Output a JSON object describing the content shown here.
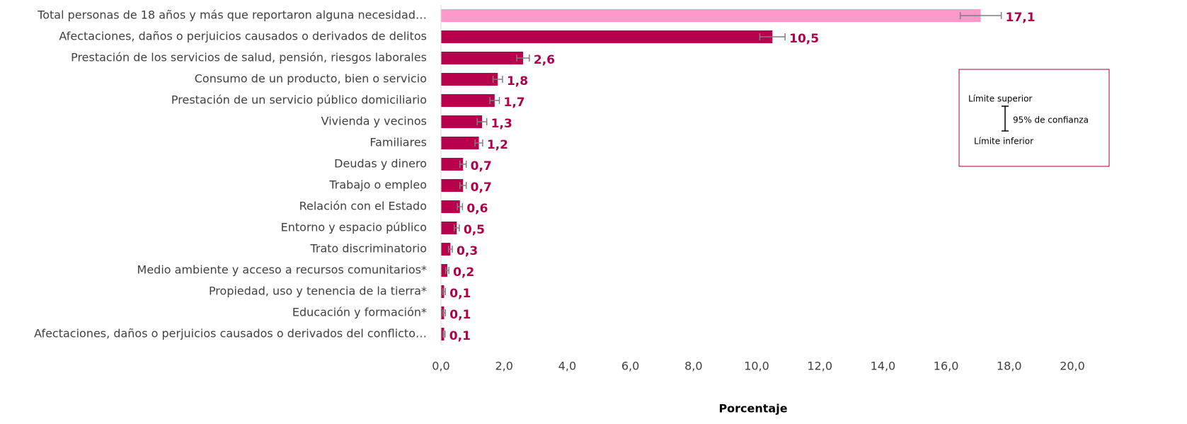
{
  "chart_data": {
    "type": "hbar_error",
    "categories": [
      "Total personas de 18 años y más que reportaron alguna necesidad…",
      "Afectaciones, daños o perjuicios causados o derivados de delitos",
      "Prestación de los servicios de salud, pensión, riesgos laborales",
      "Consumo de un producto, bien o servicio",
      "Prestación de un servicio público domiciliario",
      "Vivienda y vecinos",
      "Familiares",
      "Deudas y dinero",
      "Trabajo o empleo",
      "Relación con el Estado",
      "Entorno y espacio público",
      "Trato discriminatorio",
      "Medio ambiente y acceso a recursos comunitarios*",
      "Propiedad, uso y tenencia de la tierra*",
      "Educación y formación*",
      "Afectaciones, daños o perjuicios causados o derivados del conflicto…"
    ],
    "values": [
      17.1,
      10.5,
      2.6,
      1.8,
      1.7,
      1.3,
      1.2,
      0.7,
      0.7,
      0.6,
      0.5,
      0.3,
      0.2,
      0.1,
      0.1,
      0.1
    ],
    "value_labels": [
      "17,1",
      "10,5",
      "2,6",
      "1,8",
      "1,7",
      "1,3",
      "1,2",
      "0,7",
      "0,7",
      "0,6",
      "0,5",
      "0,3",
      "0,2",
      "0,1",
      "0,1",
      "0,1"
    ],
    "errors": [
      0.65,
      0.4,
      0.2,
      0.15,
      0.15,
      0.15,
      0.12,
      0.1,
      0.1,
      0.08,
      0.08,
      0.06,
      0.05,
      0.04,
      0.04,
      0.03
    ],
    "colors": [
      "#ff99cc",
      "#b8004d",
      "#b8004d",
      "#b8004d",
      "#b8004d",
      "#b8004d",
      "#b8004d",
      "#b8004d",
      "#b8004d",
      "#b8004d",
      "#b8004d",
      "#b8004d",
      "#b8004d",
      "#b8004d",
      "#b8004d",
      "#b8004d"
    ],
    "label_color": "#b0004a",
    "xlabel": "Porcentaje",
    "xlim": [
      0,
      20
    ],
    "xticks": [
      {
        "value": 0,
        "label": "0,0"
      },
      {
        "value": 2,
        "label": "2,0"
      },
      {
        "value": 4,
        "label": "4,0"
      },
      {
        "value": 6,
        "label": "6,0"
      },
      {
        "value": 8,
        "label": "8,0"
      },
      {
        "value": 10,
        "label": "10,0"
      },
      {
        "value": 12,
        "label": "12,0"
      },
      {
        "value": 14,
        "label": "14,0"
      },
      {
        "value": 16,
        "label": "16,0"
      },
      {
        "value": 18,
        "label": "18,0"
      },
      {
        "value": 20,
        "label": "20,0"
      }
    ],
    "legend_box": {
      "upper": "Límite superior",
      "ci": "95% de confianza",
      "lower": "Límite inferior"
    }
  }
}
